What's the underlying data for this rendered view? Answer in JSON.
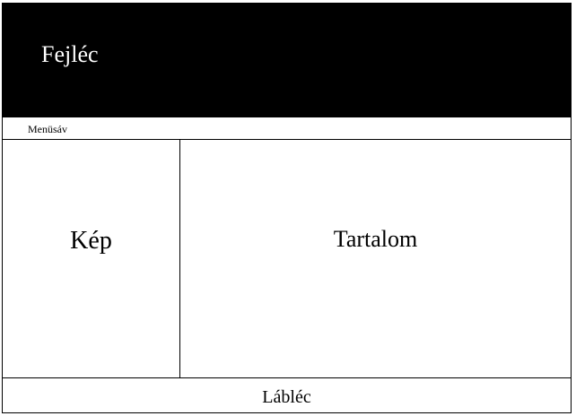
{
  "header": {
    "title": "Fejléc",
    "background_color": "#000000",
    "text_color": "#ffffff"
  },
  "menubar": {
    "label": "Menüsáv"
  },
  "image_area": {
    "label": "Kép"
  },
  "content_area": {
    "label": "Tartalom"
  },
  "footer": {
    "label": "Lábléc"
  }
}
